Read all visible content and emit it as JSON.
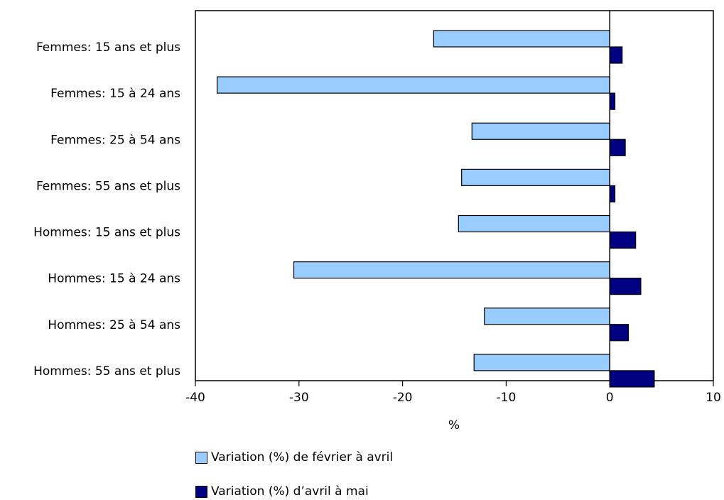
{
  "chart_data": {
    "type": "bar",
    "orientation": "horizontal",
    "categories": [
      "Femmes: 15 ans et plus",
      "Femmes: 15 à 24 ans",
      "Femmes: 25 à 54 ans",
      "Femmes: 55 ans et plus",
      "Hommes: 15 ans et plus",
      "Hommes: 15 à 24 ans",
      "Hommes: 25 à 54 ans",
      "Hommes: 55 ans et plus"
    ],
    "series": [
      {
        "name": "Variation (%) de février à avril",
        "color": "#99ccff",
        "values": [
          -17.0,
          -37.9,
          -13.3,
          -14.3,
          -14.6,
          -30.5,
          -12.1,
          -13.1
        ]
      },
      {
        "name": "Variation (%) d’avril à mai",
        "color": "#000080",
        "values": [
          1.2,
          0.5,
          1.5,
          0.5,
          2.5,
          3.0,
          1.8,
          4.3
        ]
      }
    ],
    "xlabel": "%",
    "ylabel": "",
    "xlim": [
      -40,
      10
    ],
    "xticks": [
      -40,
      -30,
      -20,
      -10,
      0,
      10
    ],
    "grid": false,
    "legend_position": "bottom"
  }
}
